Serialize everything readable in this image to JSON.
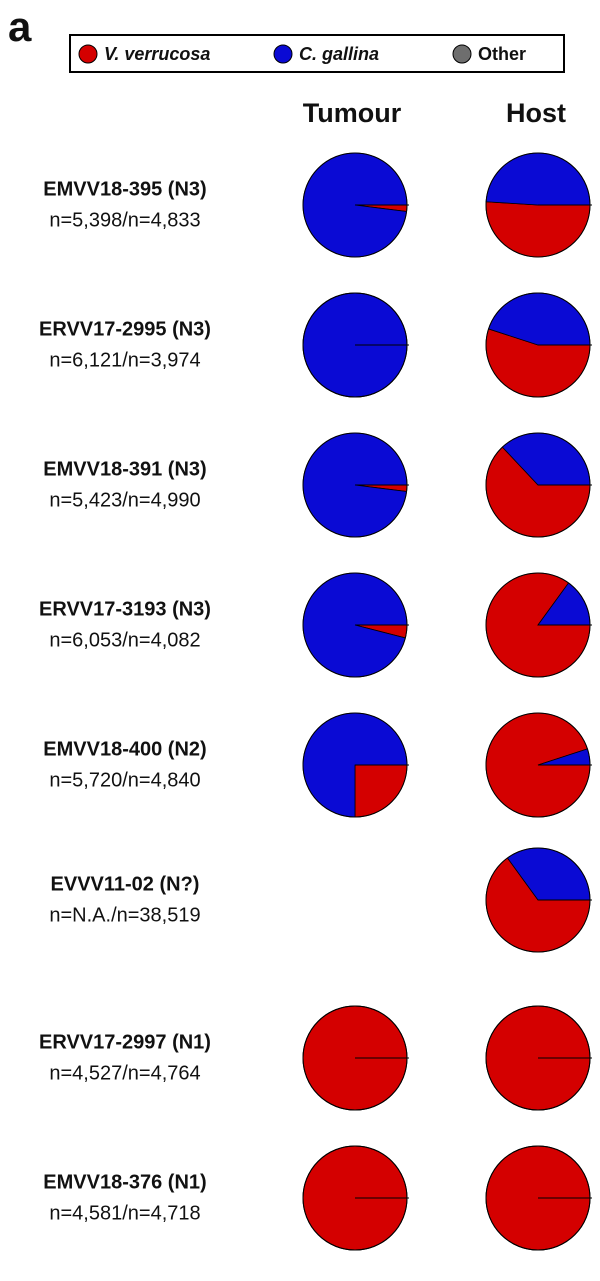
{
  "figure": {
    "panel_label": "a",
    "legend": [
      {
        "name": "V. verrucosa",
        "color": "#d40000"
      },
      {
        "name": "C. gallina",
        "color": "#0a0ad4"
      },
      {
        "name": "Other",
        "color": "#6e6e6e"
      }
    ],
    "columns": [
      "Tumour",
      "Host"
    ],
    "rows": [
      {
        "label": "EMVV18-395 (N3)",
        "counts": "n=5,398/n=4,833"
      },
      {
        "label": "ERVV17-2995 (N3)",
        "counts": "n=6,121/n=3,974"
      },
      {
        "label": "EMVV18-391 (N3)",
        "counts": "n=5,423/n=4,990"
      },
      {
        "label": "ERVV17-3193 (N3)",
        "counts": "n=6,053/n=4,082"
      },
      {
        "label": "EMVV18-400 (N2)",
        "counts": "n=5,720/n=4,840"
      },
      {
        "label": "EVVV11-02 (N?)",
        "counts": "n=N.A./n=38,519"
      },
      {
        "label": "ERVV17-2997 (N1)",
        "counts": "n=4,527/n=4,764"
      },
      {
        "label": "EMVV18-376 (N1)",
        "counts": "n=4,581/n=4,718"
      }
    ]
  },
  "chart_data": [
    {
      "type": "pie",
      "values": [
        2,
        98,
        0
      ]
    },
    {
      "type": "pie",
      "values": [
        51,
        49,
        0
      ]
    },
    {
      "type": "pie",
      "values": [
        0,
        100,
        0
      ]
    },
    {
      "type": "pie",
      "values": [
        55,
        45,
        0
      ]
    },
    {
      "type": "pie",
      "values": [
        2,
        98,
        0
      ]
    },
    {
      "type": "pie",
      "values": [
        63,
        37,
        0
      ]
    },
    {
      "type": "pie",
      "values": [
        4,
        96,
        0
      ]
    },
    {
      "type": "pie",
      "values": [
        85,
        15,
        0
      ]
    },
    {
      "type": "pie",
      "values": [
        25,
        75,
        0
      ]
    },
    {
      "type": "pie",
      "values": [
        95,
        5,
        0
      ]
    },
    {
      "type": "pie",
      "values": [
        null,
        null,
        null
      ]
    },
    {
      "type": "pie",
      "values": [
        65,
        35,
        0
      ]
    },
    {
      "type": "pie",
      "values": [
        100,
        0,
        0
      ]
    },
    {
      "type": "pie",
      "values": [
        100,
        0,
        0
      ]
    },
    {
      "type": "pie",
      "values": [
        100,
        0,
        0
      ]
    },
    {
      "type": "pie",
      "values": [
        100,
        0,
        0
      ]
    }
  ]
}
